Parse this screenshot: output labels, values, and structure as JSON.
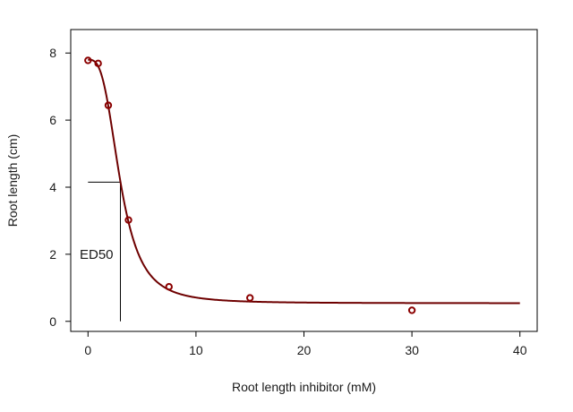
{
  "chart_data": {
    "type": "scatter",
    "xlabel": "Root length inhibitor (mM)",
    "ylabel": "Root length (cm)",
    "xlim": [
      -1.6,
      41.6
    ],
    "ylim": [
      -0.3,
      8.7
    ],
    "x_ticks": [
      0,
      10,
      20,
      30,
      40
    ],
    "y_ticks": [
      0,
      2,
      4,
      6,
      8
    ],
    "grid": false,
    "legend": "none",
    "colors": {
      "points": "#8b0000",
      "curve": "#6e0000",
      "axes": "#000000"
    },
    "points": [
      {
        "x": 0,
        "y": 7.78
      },
      {
        "x": 0.94,
        "y": 7.69
      },
      {
        "x": 1.88,
        "y": 6.44
      },
      {
        "x": 3.75,
        "y": 3.02
      },
      {
        "x": 7.5,
        "y": 1.03
      },
      {
        "x": 15,
        "y": 0.7
      },
      {
        "x": 30,
        "y": 0.33
      }
    ],
    "fit": {
      "model": "log-logistic",
      "lower": 0.54,
      "upper": 7.8,
      "ed50": 3.0,
      "slope": 3.1,
      "x_range": [
        0,
        40
      ]
    },
    "annotations": {
      "ed50_label": "ED50",
      "ed50_x": 3.0,
      "ed50_y": 4.15,
      "ed50_hline_x_start": 0
    }
  }
}
